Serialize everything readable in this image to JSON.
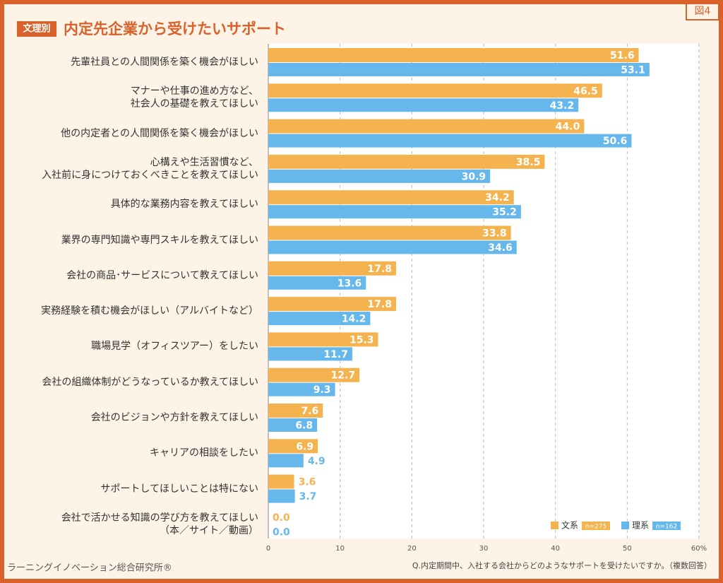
{
  "figure_label": "図4",
  "badge": "文理別",
  "chart_data": {
    "type": "hbar",
    "title": "内定先企業から受けたいサポート",
    "categories": [
      "先輩社員との人間関係を築く機会がほしい",
      "マナーや仕事の進め方など、\n社会人の基礎を教えてほしい",
      "他の内定者との人間関係を築く機会がほしい",
      "心構えや生活習慣など、\n入社前に身につけておくべきことを教えてほしい",
      "具体的な業務内容を教えてほしい",
      "業界の専門知識や専門スキルを教えてほしい",
      "会社の商品･サービスについて教えてほしい",
      "実務経験を積む機会がほしい（アルバイトなど）",
      "職場見学（オフィスツアー）をしたい",
      "会社の組織体制がどうなっているか教えてほしい",
      "会社のビジョンや方針を教えてほしい",
      "キャリアの相談をしたい",
      "サポートしてほしいことは特にない",
      "会社で活かせる知識の学び方を教えてほしい\n（本／サイト／動画）"
    ],
    "series": [
      {
        "name": "文系",
        "sample": "n=275",
        "color": "#f5b350",
        "values": [
          51.6,
          46.5,
          44.0,
          38.5,
          34.2,
          33.8,
          17.8,
          17.8,
          15.3,
          12.7,
          7.6,
          6.9,
          3.6,
          0.0
        ],
        "value_labels": [
          "51.6",
          "46.5",
          "44.0",
          "38.5",
          "34.2",
          "33.8",
          "17.8",
          "17.8",
          "15.3",
          "12.7",
          "7.6",
          "6.9",
          "3.6",
          "0.0"
        ]
      },
      {
        "name": "理系",
        "sample": "n=162",
        "color": "#66b8ec",
        "values": [
          53.1,
          43.2,
          50.6,
          30.9,
          35.2,
          34.6,
          13.6,
          14.2,
          11.7,
          9.3,
          6.8,
          4.9,
          3.7,
          0.0
        ],
        "value_labels": [
          "53.1",
          "43.2",
          "50.6",
          "30.9",
          "35.2",
          "34.6",
          "13.6",
          "14.2",
          "11.7",
          "9.3",
          "6.8",
          "4.9",
          "3.7",
          "0.0"
        ]
      }
    ],
    "xlim": [
      0,
      60
    ],
    "xticks": [
      0,
      10,
      20,
      30,
      40,
      50,
      {
        "value": 60,
        "label": "60%"
      }
    ],
    "grid": true,
    "legend": "lower right"
  },
  "source": "ラーニングイノベーション総合研究所®",
  "note": "Q.内定期間中、入社する会社からどのようなサポートを受けたいですか。（複数回答）"
}
